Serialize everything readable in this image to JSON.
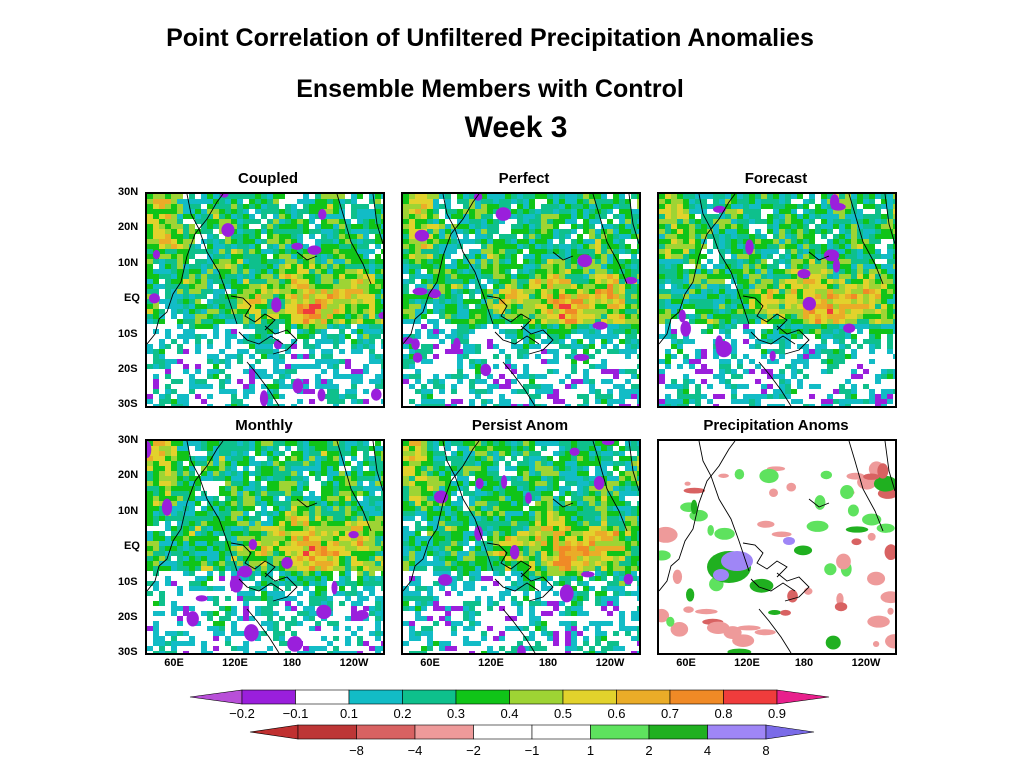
{
  "titles": {
    "main": "Point Correlation of Unfiltered Precipitation Anomalies",
    "sub": "Ensemble Members with Control",
    "week": "Week 3"
  },
  "chart_data": {
    "type": "heatmap",
    "panels": [
      {
        "title": "Coupled"
      },
      {
        "title": "Perfect"
      },
      {
        "title": "Forecast"
      },
      {
        "title": "Monthly"
      },
      {
        "title": "Persist Anom"
      },
      {
        "title": "Precipitation Anoms"
      }
    ],
    "y_ticks": [
      "30N",
      "20N",
      "10N",
      "EQ",
      "10S",
      "20S",
      "30S"
    ],
    "x_ticks": [
      "60E",
      "120E",
      "180",
      "120W"
    ],
    "colorbar_correlation": {
      "labels": [
        "−0.2",
        "−0.1",
        "0.1",
        "0.2",
        "0.3",
        "0.4",
        "0.5",
        "0.6",
        "0.7",
        "0.8",
        "0.9"
      ],
      "colors": [
        "#9a1fdc",
        "#ffffff",
        "#12bcc6",
        "#0ec08c",
        "#10c418",
        "#9ed434",
        "#e2d22c",
        "#eaac28",
        "#f08a26",
        "#f03c3c",
        "#e0208e"
      ],
      "low_arrow": "#b84fd8",
      "high_arrow": "#e8208c"
    },
    "colorbar_precip": {
      "labels": [
        "−8",
        "−4",
        "−2",
        "−1",
        "1",
        "2",
        "4",
        "8"
      ],
      "colors": [
        "#bd3636",
        "#d86262",
        "#ee9a9a",
        "#ffffff",
        "#ffffff",
        "#5ee25e",
        "#20b020",
        "#9f86f6"
      ],
      "low_arrow": "#c03030",
      "high_arrow": "#7a6be8"
    }
  }
}
